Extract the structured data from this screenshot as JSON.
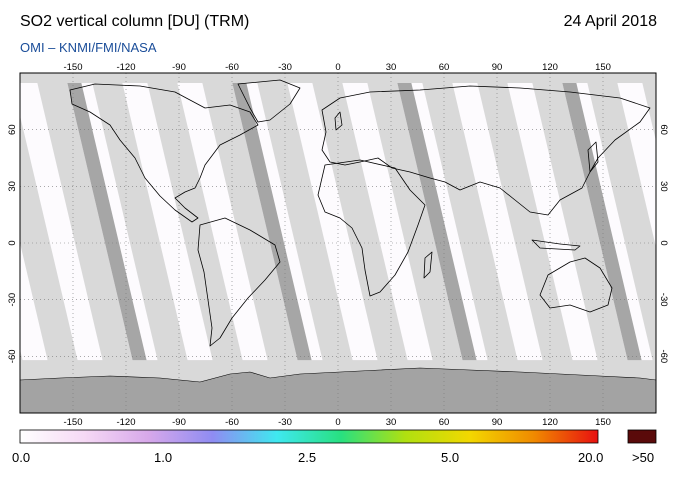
{
  "header": {
    "title": "SO2 vertical column [DU] (TRM)",
    "date": "24 April 2018",
    "credit": "OMI  –  KNMI/FMI/NASA"
  },
  "map": {
    "projection": "equirectangular",
    "lon_ticks": [
      "-150",
      "-120",
      "-90",
      "-60",
      "-30",
      "0",
      "30",
      "60",
      "90",
      "120",
      "150"
    ],
    "lat_ticks_left": [
      "60",
      "30",
      "0",
      "-30",
      "-60"
    ],
    "lat_ticks_right": [
      "60",
      "30",
      "0",
      "-30",
      "-60"
    ],
    "colors": {
      "ocean_background": "#fdfbfe",
      "swath_gap_light": "#d9d9d9",
      "swath_gap_dark": "#a6a6a6",
      "antarctic": "#a3a3a3",
      "coastline": "#000000"
    }
  },
  "colorbar": {
    "labels": [
      "0.0",
      "1.0",
      "2.5",
      "5.0",
      "20.0",
      ">50"
    ],
    "stops": [
      "#ffffff",
      "#f6d9f5",
      "#d7a8ea",
      "#8f8cf2",
      "#3fe8f0",
      "#28e080",
      "#b0e010",
      "#f2d800",
      "#f08a00",
      "#e81010"
    ],
    "overflow_color": "#5a0a0a"
  }
}
